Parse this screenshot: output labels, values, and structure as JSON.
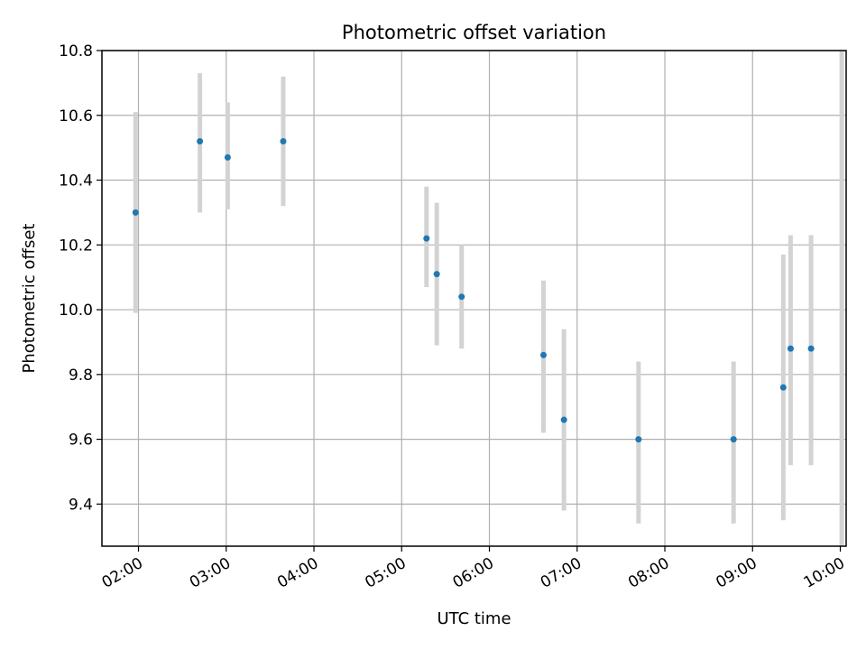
{
  "chart_data": {
    "type": "scatter",
    "title": "Photometric offset variation",
    "xlabel": "UTC time",
    "ylabel": "Photometric offset",
    "x_ticks": [
      "02:00",
      "03:00",
      "04:00",
      "05:00",
      "06:00",
      "07:00",
      "08:00",
      "09:00",
      "10:00"
    ],
    "y_ticks": [
      "9.4",
      "9.6",
      "9.8",
      "10.0",
      "10.2",
      "10.4",
      "10.6",
      "10.8"
    ],
    "xlim": [
      "01:35",
      "10:04"
    ],
    "ylim": [
      9.27,
      10.8
    ],
    "grid": true,
    "legend": "none",
    "colors": {
      "marker": "#1f77b4",
      "errorbar": "#d3d3d3",
      "grid": "#b0b0b0"
    },
    "points": [
      {
        "x": "01:58",
        "y": 10.3,
        "ylow": 9.99,
        "yhigh": 10.61
      },
      {
        "x": "02:42",
        "y": 10.52,
        "ylow": 10.3,
        "yhigh": 10.73
      },
      {
        "x": "03:01",
        "y": 10.47,
        "ylow": 10.31,
        "yhigh": 10.64
      },
      {
        "x": "03:39",
        "y": 10.52,
        "ylow": 10.32,
        "yhigh": 10.72
      },
      {
        "x": "05:17",
        "y": 10.22,
        "ylow": 10.07,
        "yhigh": 10.38
      },
      {
        "x": "05:24",
        "y": 10.11,
        "ylow": 9.89,
        "yhigh": 10.33
      },
      {
        "x": "05:41",
        "y": 10.04,
        "ylow": 9.88,
        "yhigh": 10.2
      },
      {
        "x": "06:37",
        "y": 9.86,
        "ylow": 9.62,
        "yhigh": 10.09
      },
      {
        "x": "06:51",
        "y": 9.66,
        "ylow": 9.38,
        "yhigh": 9.94
      },
      {
        "x": "07:42",
        "y": 9.6,
        "ylow": 9.34,
        "yhigh": 9.84
      },
      {
        "x": "08:47",
        "y": 9.6,
        "ylow": 9.34,
        "yhigh": 9.84
      },
      {
        "x": "09:21",
        "y": 9.76,
        "ylow": 9.35,
        "yhigh": 10.17
      },
      {
        "x": "09:26",
        "y": 9.88,
        "ylow": 9.52,
        "yhigh": 10.23
      },
      {
        "x": "09:40",
        "y": 9.88,
        "ylow": 9.52,
        "yhigh": 10.23
      },
      {
        "x": "10:01",
        "y": null,
        "ylow": 9.27,
        "yhigh": 10.8
      }
    ]
  }
}
